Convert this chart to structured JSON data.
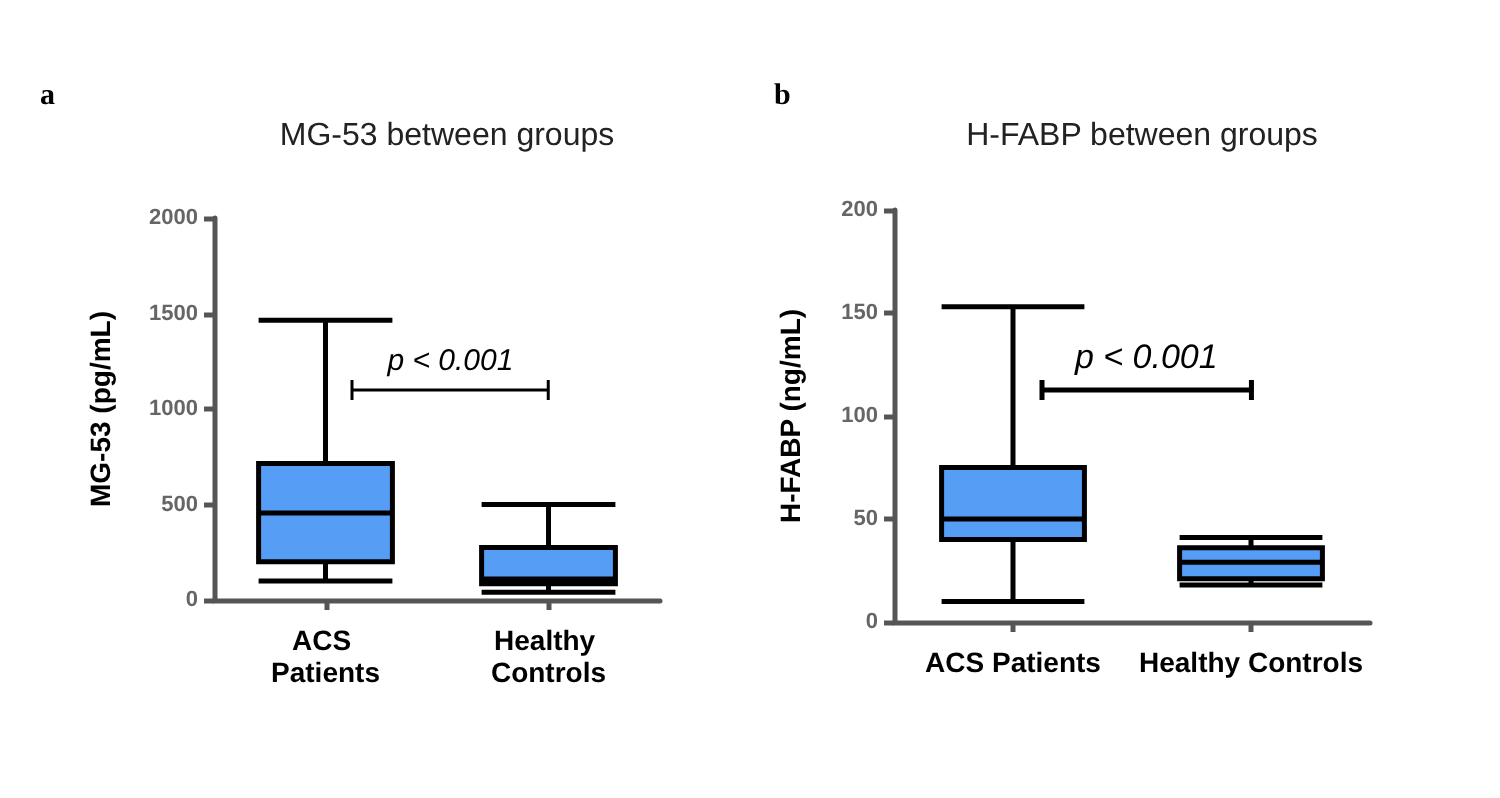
{
  "chart_data": [
    {
      "type": "box",
      "title": "MG-53 between groups",
      "ylabel": "MG-53 (pg/mL)",
      "categories": [
        "ACS Patients",
        "Healthy Controls"
      ],
      "color": "#559df5",
      "boxes": [
        {
          "low": 100,
          "q1": 200,
          "median": 455,
          "q3": 715,
          "high": 1465
        },
        {
          "low": 40,
          "q1": 85,
          "median": 110,
          "q3": 275,
          "high": 500
        }
      ],
      "ylim": [
        0,
        2000
      ],
      "yticks": [
        0,
        500,
        1000,
        1500,
        2000
      ],
      "grid": false,
      "annotations": [
        "a",
        "p < 0.001"
      ]
    },
    {
      "type": "box",
      "title": "H-FABP between groups",
      "ylabel": "H-FABP (ng/mL)",
      "categories": [
        "ACS Patients",
        "Healthy Controls"
      ],
      "color": "#559df5",
      "boxes": [
        {
          "low": 10,
          "q1": 40,
          "median": 50,
          "q3": 75,
          "high": 153
        },
        {
          "low": 18,
          "q1": 21,
          "median": 29,
          "q3": 36,
          "high": 41
        }
      ],
      "ylim": [
        0,
        200
      ],
      "yticks": [
        0,
        50,
        100,
        150,
        200
      ],
      "grid": false,
      "annotations": [
        "b",
        "p < 0.001"
      ]
    }
  ]
}
